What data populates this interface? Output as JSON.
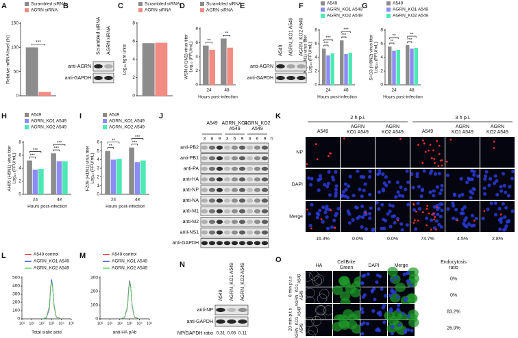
{
  "chart_data": [
    {
      "panel": "A",
      "type": "bar",
      "ylabel": "Relative mRNA level (%)",
      "categories": [
        null
      ],
      "series": [
        {
          "name": "Scrambled siRNA",
          "color": "#8c8c8c",
          "values": [
            100
          ]
        },
        {
          "name": "AGRN siRNA",
          "color": "#f28b82",
          "values": [
            8
          ]
        }
      ],
      "ylim": [
        0,
        150
      ],
      "yticks": [
        0,
        50,
        100,
        150
      ],
      "annotations": [
        "***"
      ]
    },
    {
      "panel": "C",
      "type": "bar",
      "ylabel": "Log₁₀ light units",
      "categories": [
        null
      ],
      "series": [
        {
          "name": "Scrambled siRNA",
          "color": "#8c8c8c",
          "values": [
            5.8
          ]
        },
        {
          "name": "AGRN siRNA",
          "color": "#f28b82",
          "values": [
            5.85
          ]
        }
      ],
      "ylim": [
        0,
        8
      ],
      "yticks": [
        0,
        2,
        4,
        6,
        8
      ]
    },
    {
      "panel": "D",
      "type": "bar",
      "ylabel": "WSN (H1N1) virus titer",
      "yunit": "Log₁₀ (FFU/mL)",
      "xlabel": "Hours post-infection",
      "categories": [
        "24",
        "48"
      ],
      "series": [
        {
          "name": "Scrambled siRNA",
          "color": "#8c8c8c",
          "values": [
            5.6,
            6.6
          ]
        },
        {
          "name": "AGRN siRNA",
          "color": "#f28b82",
          "values": [
            5.0,
            5.3
          ]
        }
      ],
      "ylim": [
        0,
        8
      ],
      "yticks": [
        0,
        2,
        4,
        6,
        8
      ],
      "annotations": [
        "**",
        "**"
      ]
    },
    {
      "panel": "F",
      "type": "bar",
      "ylabel": "WSN (H1N1) virus titer",
      "yunit": "Log₁₀ (FFU/mL)",
      "xlabel": "Hours post-infection",
      "categories": [
        "24",
        "48"
      ],
      "series": [
        {
          "name": "A549",
          "color": "#8c8c8c",
          "values": [
            5.3,
            6.5
          ]
        },
        {
          "name": "AGRN_KO1 A549",
          "color": "#8c8cf5",
          "values": [
            4.3,
            4.5
          ]
        },
        {
          "name": "AGRN_KO2 A549",
          "color": "#4de8b4",
          "values": [
            4.6,
            4.7
          ]
        }
      ],
      "ylim": [
        0,
        8
      ],
      "yticks": [
        0,
        2,
        4,
        6,
        8
      ],
      "annotations": [
        "***",
        "***",
        "***",
        "***"
      ]
    },
    {
      "panel": "G",
      "type": "bar",
      "ylabel": "SH13 (H9N2) virus titer",
      "yunit": "Log₁₀ (FFU/mL)",
      "xlabel": "Hours post-infection",
      "categories": [
        "24",
        "48"
      ],
      "series": [
        {
          "name": "A549",
          "color": "#8c8c8c",
          "values": [
            5.6,
            5.8
          ]
        },
        {
          "name": "AGRN_KO1 A549",
          "color": "#8c8cf5",
          "values": [
            5.0,
            5.3
          ]
        },
        {
          "name": "AGRN_KO2 A549",
          "color": "#4de8b4",
          "values": [
            5.1,
            5.4
          ]
        }
      ],
      "ylim": [
        0,
        8
      ],
      "yticks": [
        0,
        2,
        4,
        6,
        8
      ],
      "annotations": [
        "**",
        "**",
        "***",
        "**"
      ]
    },
    {
      "panel": "H",
      "type": "bar",
      "ylabel": "AH05 (H5N1) virus titer",
      "yunit": "Log₁₀ (FFU/mL)",
      "xlabel": "Hours post-infection",
      "categories": [
        "24",
        "48"
      ],
      "series": [
        {
          "name": "A549",
          "color": "#8c8c8c",
          "values": [
            5.2,
            6.3
          ]
        },
        {
          "name": "AGRN_KO1 A549",
          "color": "#8c8cf5",
          "values": [
            3.8,
            5.1
          ]
        },
        {
          "name": "AGRN_KO2 A549",
          "color": "#4de8b4",
          "values": [
            3.9,
            5.1
          ]
        }
      ],
      "ylim": [
        0,
        8
      ],
      "yticks": [
        0,
        2,
        4,
        6,
        8
      ],
      "annotations": [
        "***",
        "***",
        "***",
        "***"
      ]
    },
    {
      "panel": "I",
      "type": "bar",
      "ylabel": "FZ09 (H1N1) virus titer",
      "yunit": "Log₁₀ (FFU/mL)",
      "xlabel": "Hours post-infection",
      "categories": [
        "24",
        "48"
      ],
      "series": [
        {
          "name": "A549",
          "color": "#8c8c8c",
          "values": [
            5.0,
            5.4
          ]
        },
        {
          "name": "AGRN_KO1 A549",
          "color": "#8c8cf5",
          "values": [
            4.0,
            3.7
          ]
        },
        {
          "name": "AGRN_KO2 A549",
          "color": "#4de8b4",
          "values": [
            4.1,
            3.9
          ]
        }
      ],
      "ylim": [
        0,
        6
      ],
      "yticks": [
        0,
        1,
        2,
        3,
        4,
        5,
        6
      ],
      "annotations": [
        "**",
        "**",
        "***",
        "***"
      ]
    },
    {
      "panel": "L",
      "type": "line",
      "xlabel": "Total sialic acid",
      "xscale": "log",
      "x": [
        100,
        300,
        600,
        800,
        1000,
        1300,
        1800,
        3000,
        10000
      ],
      "xlim": [
        1,
        100000
      ],
      "xticks": [
        {
          "value": 1,
          "label": "10⁰"
        },
        {
          "value": 10,
          "label": "10¹"
        },
        {
          "value": 100,
          "label": "10²"
        },
        {
          "value": 1000,
          "label": "10³"
        },
        {
          "value": 10000,
          "label": "10⁴"
        },
        {
          "value": 100000,
          "label": "10⁵"
        }
      ],
      "ylim": [
        0,
        500
      ],
      "yticks": [
        0,
        100,
        200,
        300,
        400,
        500
      ],
      "series": [
        {
          "name": "A549 control",
          "color": "#e8202a",
          "values": [
            0,
            15,
            150,
            380,
            470,
            380,
            150,
            20,
            0
          ]
        },
        {
          "name": "AGRN_KO1 A549",
          "color": "#2f4fd8",
          "values": [
            0,
            10,
            120,
            360,
            480,
            400,
            170,
            25,
            0
          ]
        },
        {
          "name": "AGRN_KO2 A549",
          "color": "#5fd35f",
          "values": [
            0,
            12,
            140,
            350,
            450,
            390,
            160,
            22,
            0
          ]
        }
      ]
    },
    {
      "panel": "M",
      "type": "line",
      "xlabel": "anti-HA pAb",
      "xscale": "log",
      "x": [
        100,
        300,
        600,
        800,
        1000,
        1300,
        1800,
        3000,
        10000
      ],
      "xlim": [
        1,
        100000
      ],
      "xticks": [
        {
          "value": 1,
          "label": "10⁰"
        },
        {
          "value": 10,
          "label": "10¹"
        },
        {
          "value": 100,
          "label": "10²"
        },
        {
          "value": 1000,
          "label": "10³"
        },
        {
          "value": 10000,
          "label": "10⁴"
        },
        {
          "value": 100000,
          "label": "10⁵"
        }
      ],
      "ylim": [
        0,
        300
      ],
      "yticks": [
        0,
        100,
        200,
        300
      ],
      "series": [
        {
          "name": "A549 control",
          "color": "#e8202a",
          "values": [
            0,
            10,
            90,
            220,
            280,
            230,
            90,
            12,
            0
          ]
        },
        {
          "name": "AGRN_KO1 A549",
          "color": "#2f4fd8",
          "values": [
            0,
            8,
            80,
            210,
            275,
            235,
            100,
            15,
            0
          ]
        },
        {
          "name": "AGRN_KO2 A549",
          "color": "#5fd35f",
          "values": [
            0,
            9,
            85,
            200,
            265,
            225,
            95,
            14,
            0
          ]
        }
      ]
    }
  ],
  "blots": {
    "B": {
      "panel": "B",
      "columns": [
        "Scrambled siRNA",
        "AGRN siRNA"
      ],
      "rows": [
        "anti-AGRN",
        "anti-GAPDH"
      ]
    },
    "E": {
      "panel": "E",
      "columns": [
        "A549",
        "AGRN_KO1 A549",
        "AGRN_KO2 A549"
      ],
      "rows": [
        "anti-AGRN",
        "anti-GAPDH"
      ]
    },
    "J": {
      "panel": "J",
      "groups": [
        [
          "A549"
        ],
        [
          "AGRN_KO1",
          "A549"
        ],
        [
          "AGRN_KO2",
          "A549"
        ]
      ],
      "times": [
        "3",
        "6",
        "9"
      ],
      "unit": "h",
      "rows": [
        "anti-PB2",
        "anti-PB1",
        "anti-PA",
        "anti-HA",
        "anti-NP",
        "anti-NA",
        "anti-M1",
        "anti-M2",
        "anti-NS1",
        "anti-GAPDH"
      ]
    },
    "N": {
      "panel": "N",
      "columns": [
        "A549",
        "AGRN_KO1 A549",
        "AGRN_KO2 A549"
      ],
      "rows": [
        "anti-NP",
        "anti-GAPDH"
      ],
      "ratio_label": "NP/GAPDH ratio",
      "ratios": [
        "0.31",
        "0.06",
        "0.11"
      ]
    }
  },
  "microscopy": {
    "K": {
      "panel": "K",
      "timepoints": [
        "2 h p.i.",
        "3 h p.i."
      ],
      "columns": [
        [
          "A549"
        ],
        [
          "AGRN",
          "KO1 A549"
        ],
        [
          "AGRN",
          "KO2 A549"
        ]
      ],
      "rows": [
        "NP",
        "DAPI",
        "Merge"
      ],
      "percentages": [
        "16.3%",
        "0.0%",
        "0.0%",
        "74.7%",
        "4.5%",
        "2.8%"
      ]
    },
    "O": {
      "panel": "O",
      "columns": [
        [
          "HA"
        ],
        [
          "CellBrite",
          "Green"
        ],
        [
          "DAPI"
        ],
        [
          "Merge"
        ],
        [
          "Endocytosis",
          "ratio"
        ]
      ],
      "timepoints": [
        "0 min p.t.s",
        "20 min p.t.s"
      ],
      "cell_lines": [
        [
          "A549"
        ],
        [
          "AGRN_KO1",
          "A549"
        ]
      ],
      "ratios": [
        "0%",
        "0%",
        "83.2%",
        "26.9%"
      ]
    }
  }
}
